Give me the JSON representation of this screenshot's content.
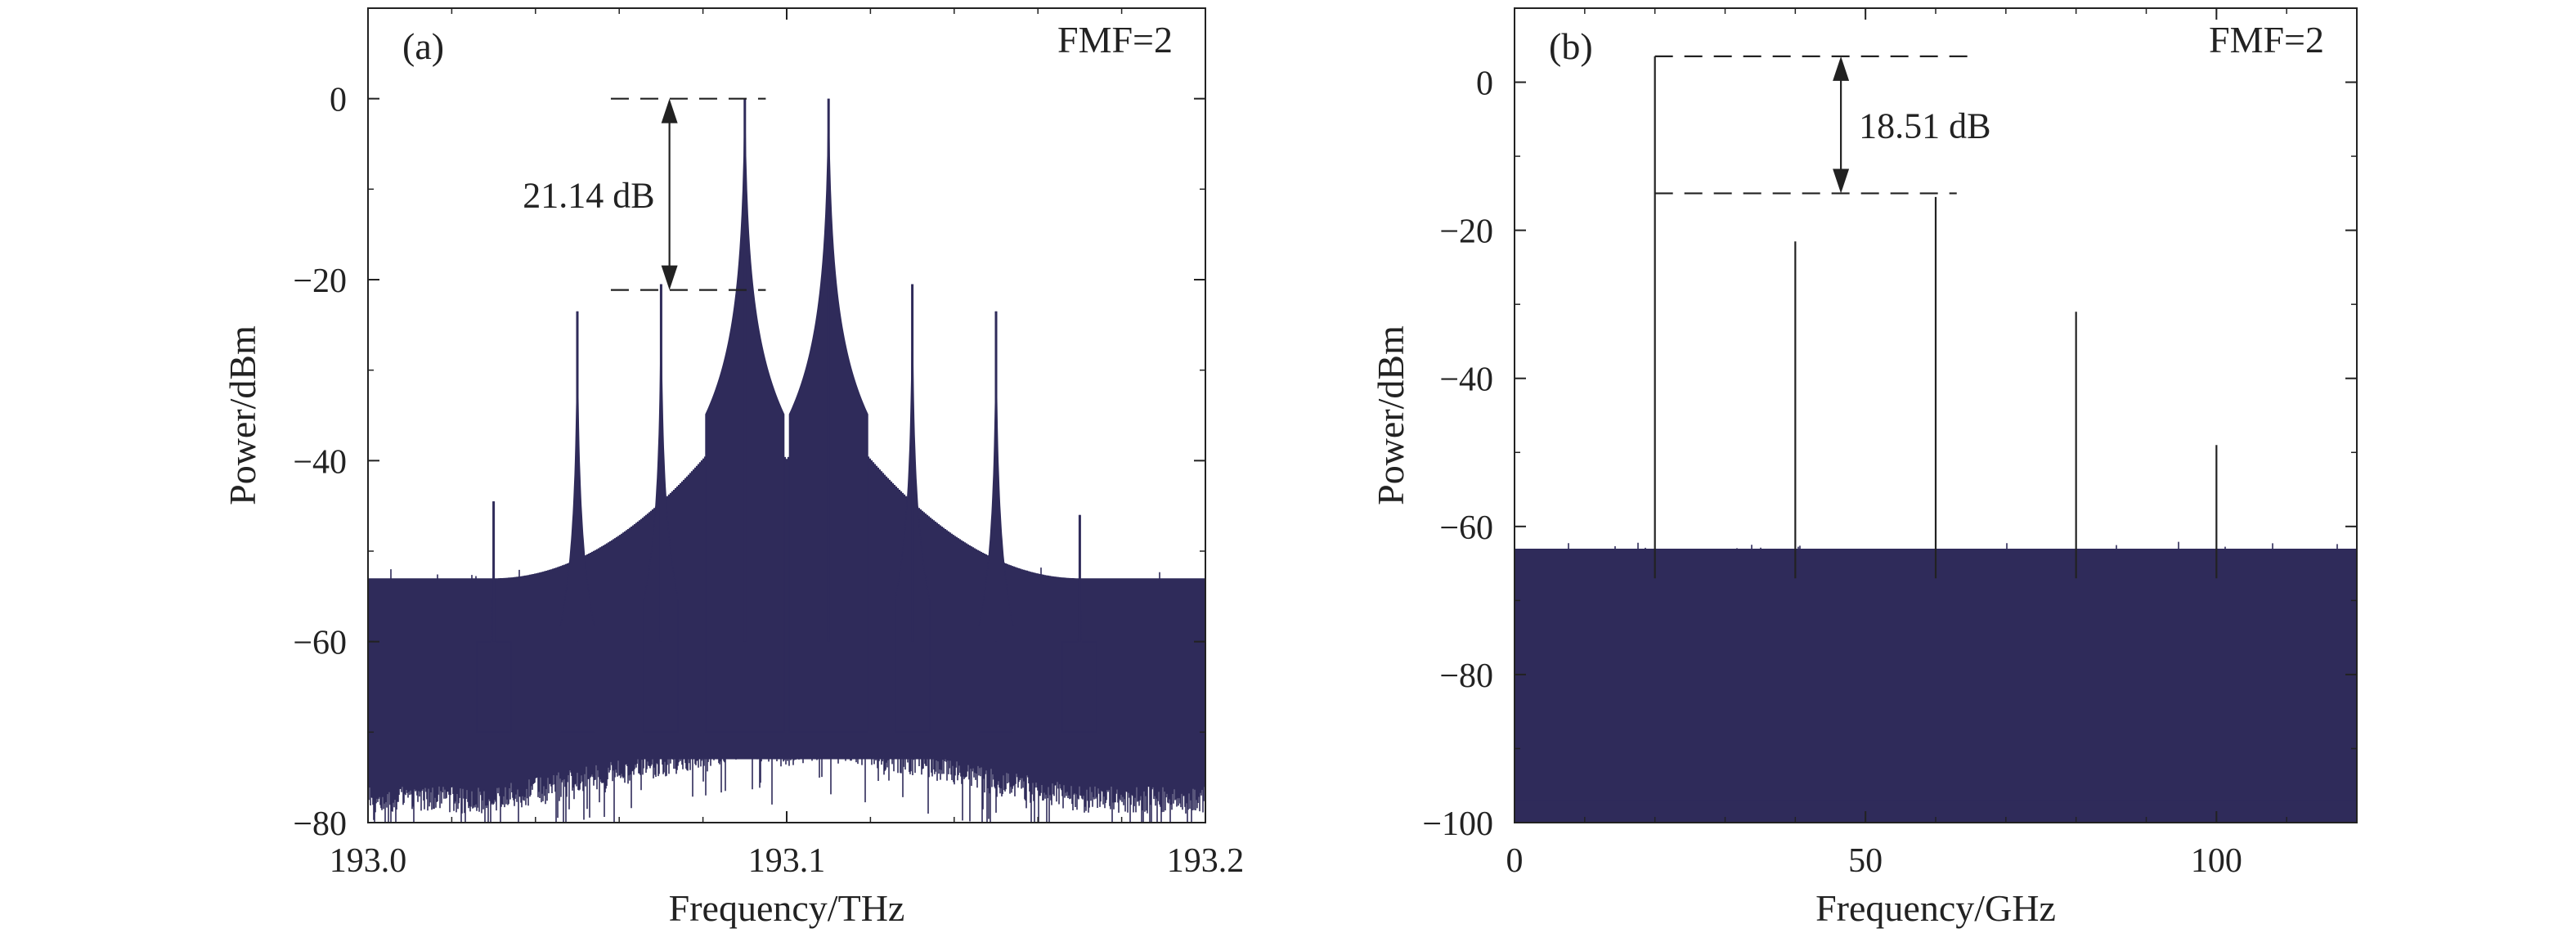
{
  "chart_data": [
    {
      "panel": "(a)",
      "type": "line",
      "title": "",
      "corner_label": "FMF=2",
      "xlabel": "Frequency/THz",
      "ylabel": "Power/dBm",
      "xlim": [
        193.0,
        193.2
      ],
      "ylim": [
        -80,
        10
      ],
      "xticks": [
        193.0,
        193.1,
        193.2
      ],
      "xtick_labels": [
        "193.0",
        "193.1",
        "193.2"
      ],
      "yticks": [
        0,
        -20,
        -40,
        -60,
        -80
      ],
      "ytick_labels": [
        "0",
        "−20",
        "−40",
        "−60",
        "−80"
      ],
      "grid": false,
      "legend": "none",
      "series_color": "#2f2b5a",
      "noise_floor": {
        "top_edge": -57,
        "bottom_edge": -76,
        "shelf_top_near_center": -40,
        "shelf_bottom_near_center": -70
      },
      "peaks": [
        {
          "x": 193.03,
          "y": -44.5
        },
        {
          "x": 193.05,
          "y": -23.5
        },
        {
          "x": 193.07,
          "y": -20.5
        },
        {
          "x": 193.09,
          "y": 0
        },
        {
          "x": 193.11,
          "y": 0
        },
        {
          "x": 193.13,
          "y": -20.5
        },
        {
          "x": 193.15,
          "y": -23.5
        },
        {
          "x": 193.17,
          "y": -46
        }
      ],
      "annotation": {
        "text": "21.14 dB",
        "x": 193.072,
        "upper_y": 0,
        "lower_y": -21.14,
        "upper_line_x": [
          193.058,
          193.095
        ],
        "lower_line_x": [
          193.058,
          193.095
        ]
      }
    },
    {
      "panel": "(b)",
      "type": "line",
      "title": "",
      "corner_label": "FMF=2",
      "xlabel": "Frequency/GHz",
      "ylabel": "Power/dBm",
      "xlim": [
        0,
        120
      ],
      "ylim": [
        -100,
        10
      ],
      "xticks": [
        0,
        50,
        100
      ],
      "xtick_labels": [
        "0",
        "50",
        "100"
      ],
      "yticks": [
        0,
        -20,
        -40,
        -60,
        -80,
        -100
      ],
      "ytick_labels": [
        "0",
        "−20",
        "−40",
        "−60",
        "−80",
        "−100"
      ],
      "grid": false,
      "legend": "none",
      "series_color": "#2f2b5a",
      "noise_floor": {
        "top_edge": -67,
        "bottom_edge": -100
      },
      "peaks": [
        {
          "x": 20,
          "y": 3.5
        },
        {
          "x": 40,
          "y": -21.5
        },
        {
          "x": 60,
          "y": -15.5
        },
        {
          "x": 80,
          "y": -31
        },
        {
          "x": 100,
          "y": -49
        }
      ],
      "annotation": {
        "text": "18.51 dB",
        "x": 46.5,
        "upper_y": 3.5,
        "lower_y": -15.01,
        "upper_line_x": [
          20,
          66
        ],
        "lower_line_x": [
          20,
          63
        ]
      }
    }
  ]
}
